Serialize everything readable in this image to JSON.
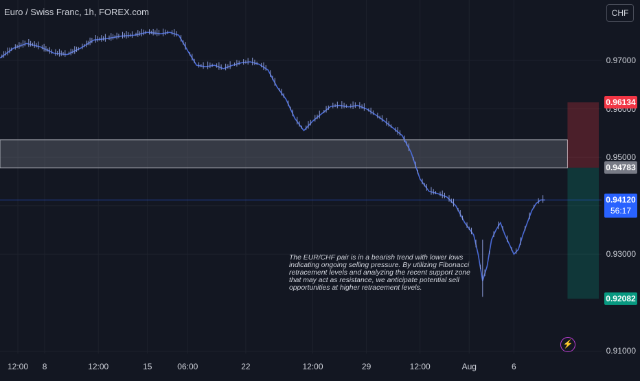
{
  "chart_data": {
    "type": "line",
    "title": "Euro / Swiss Franc, 1h, FOREX.com",
    "currency": "CHF",
    "xlabel": "",
    "ylabel": "",
    "ylim": [
      0.9095,
      0.9785
    ],
    "y_ticks": [
      "0.97000",
      "0.96000",
      "0.95000",
      "0.94000",
      "0.93000",
      "0.91000"
    ],
    "x_ticks": [
      "12:00",
      "8",
      "12:00",
      "15",
      "06:00",
      "22",
      "12:00",
      "29",
      "12:00",
      "Aug",
      "6"
    ],
    "x_tick_times": [
      4,
      10,
      22,
      33,
      42,
      55,
      70,
      82,
      94,
      105,
      115
    ],
    "series": [
      {
        "name": "",
        "color": "#4a6bd8",
        "x": [
          0,
          3,
          6,
          9,
          12,
          15,
          18,
          21,
          24,
          27,
          30,
          33,
          36,
          38,
          40,
          42,
          44,
          46,
          48,
          50,
          52,
          54,
          56,
          58,
          60,
          62,
          64,
          66,
          68,
          70,
          72,
          74,
          76,
          78,
          80,
          82,
          84,
          86,
          88,
          90,
          92,
          94,
          96,
          98,
          100,
          102,
          104,
          106,
          107,
          108,
          109,
          110,
          111,
          112,
          113,
          114,
          115,
          116,
          117,
          118,
          119,
          120,
          121,
          122
        ],
        "y": [
          0.9705,
          0.9725,
          0.9735,
          0.9728,
          0.9715,
          0.9712,
          0.9725,
          0.9742,
          0.9745,
          0.975,
          0.9752,
          0.9758,
          0.9755,
          0.9758,
          0.9752,
          0.972,
          0.969,
          0.9687,
          0.969,
          0.9683,
          0.969,
          0.9695,
          0.9697,
          0.9692,
          0.968,
          0.9645,
          0.962,
          0.958,
          0.9555,
          0.9575,
          0.959,
          0.9605,
          0.9607,
          0.9604,
          0.9607,
          0.96,
          0.9588,
          0.9575,
          0.956,
          0.9545,
          0.951,
          0.9455,
          0.943,
          0.9425,
          0.9418,
          0.94,
          0.9365,
          0.934,
          0.93,
          0.9245,
          0.9275,
          0.933,
          0.935,
          0.9365,
          0.934,
          0.932,
          0.93,
          0.931,
          0.934,
          0.9365,
          0.939,
          0.9405,
          0.9412,
          0.9412
        ]
      }
    ],
    "x_range": [
      0,
      134
    ],
    "support_zone": {
      "label": "0.94783",
      "x_from": 0,
      "x_to": 127,
      "y_top": 0.9536,
      "y_bottom": 0.9478
    },
    "position": {
      "entry_price": 0.94783,
      "stop_price": 0.96134,
      "target_price": 0.92082,
      "x_from": 127,
      "x_to": 134,
      "stop_color": "#f23645",
      "target_color": "#089981"
    },
    "current_price": {
      "label": "0.94120",
      "value": 0.9412,
      "countdown": "56:17",
      "color": "#2962ff"
    },
    "price_tags": [
      {
        "label": "0.96134",
        "value": 0.96134,
        "color": "#f23645"
      },
      {
        "label": "0.94783",
        "value": 0.94783,
        "color": "#787b86"
      },
      {
        "label": "0.92082",
        "value": 0.92082,
        "color": "#089981"
      }
    ],
    "annotation": "The EUR/CHF pair is in a bearish trend with lower lows indicating ongoing selling pressure. By utilizing Fibonacci retracement levels and analyzing the recent support zone that may act as resistance, we anticipate potential sell opportunities at higher retracement levels.",
    "grid": true,
    "background": "#131722"
  },
  "toolbar": {
    "currency_button": "CHF"
  },
  "icons": {
    "alert": "lightning-bolt-icon"
  }
}
